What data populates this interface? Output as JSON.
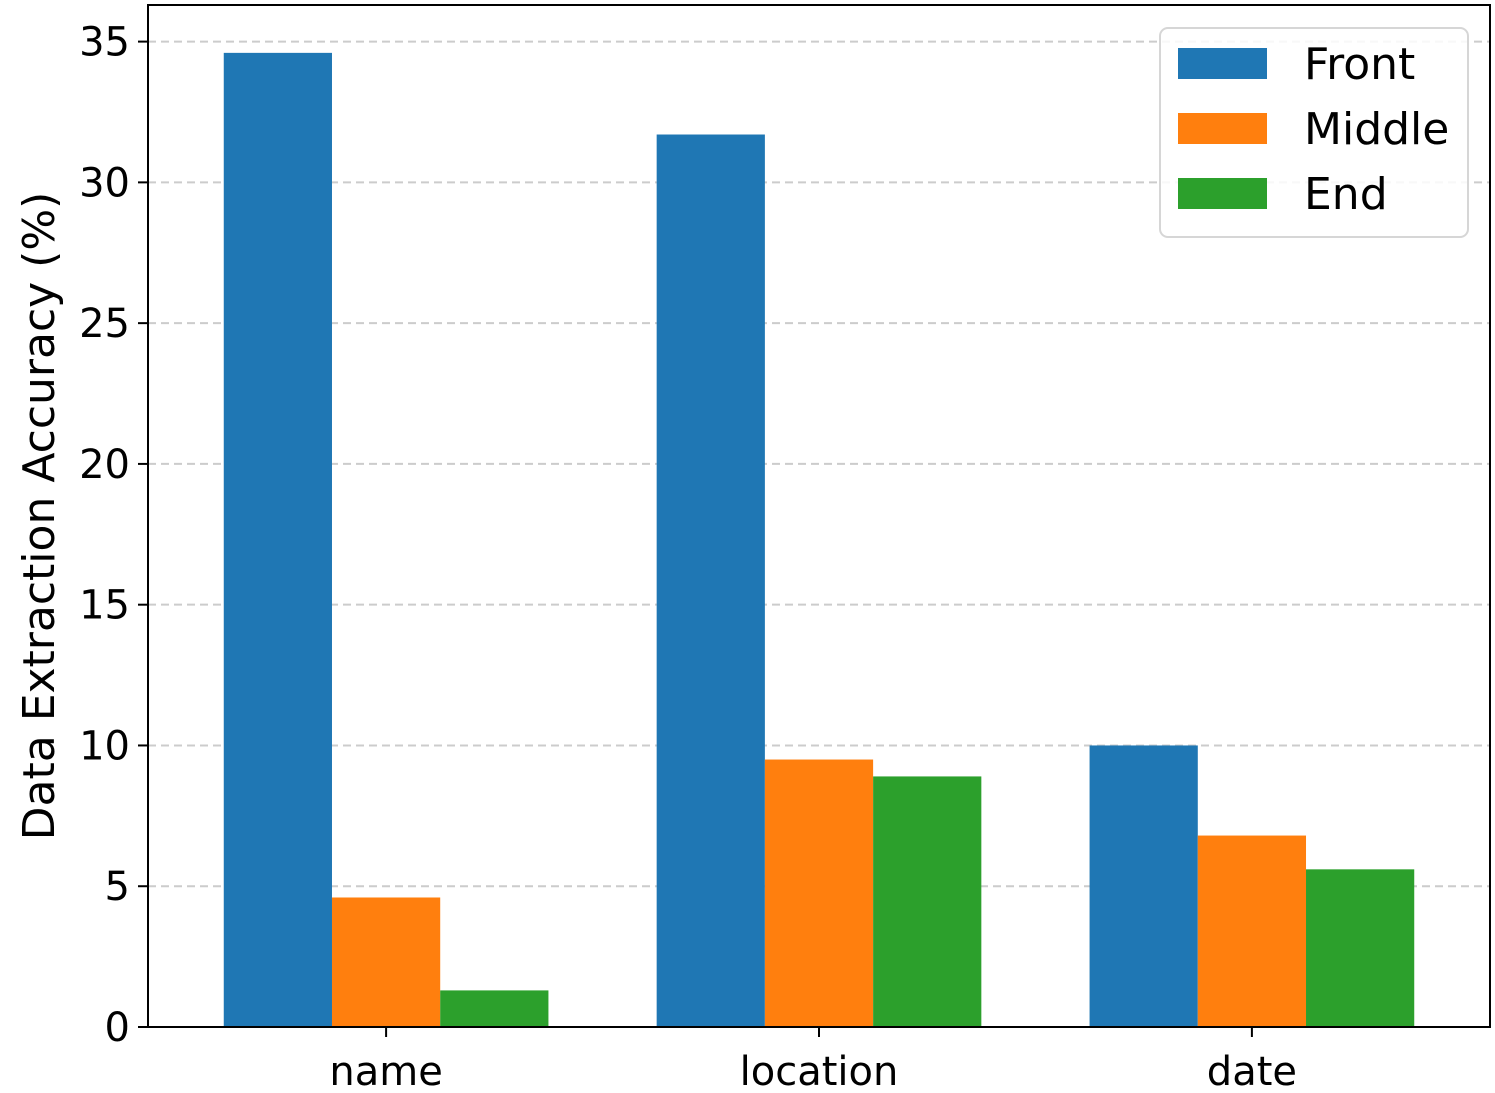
{
  "chart_data": {
    "type": "bar",
    "title": "",
    "xlabel": "",
    "ylabel": "Data Extraction Accuracy (%)",
    "categories": [
      "name",
      "location",
      "date"
    ],
    "series": [
      {
        "name": "Front",
        "color": "#1f77b4",
        "values": [
          34.6,
          31.7,
          10.0
        ]
      },
      {
        "name": "Middle",
        "color": "#ff7f0e",
        "values": [
          4.6,
          9.5,
          6.8
        ]
      },
      {
        "name": "End",
        "color": "#2ca02c",
        "values": [
          1.3,
          8.9,
          5.6
        ]
      }
    ],
    "ylim": [
      0,
      36.3
    ],
    "yticks": [
      0,
      5,
      10,
      15,
      20,
      25,
      30,
      35
    ],
    "grid": "horizontal-dashed",
    "legend_position": "top-right"
  }
}
